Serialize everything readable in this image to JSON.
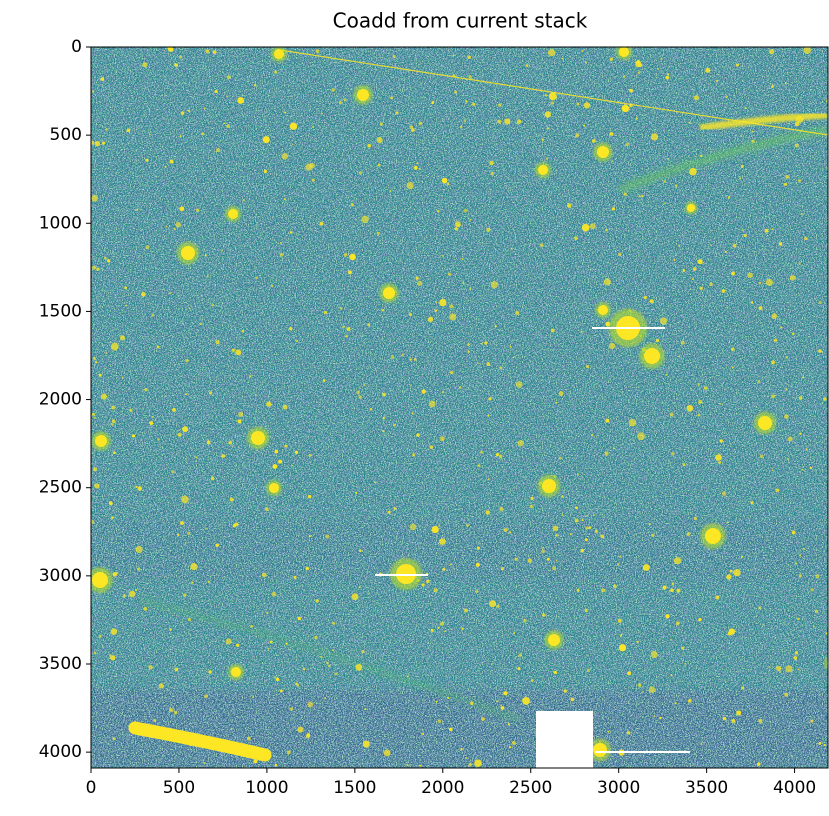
{
  "chart_data": {
    "type": "image",
    "title": "Coadd from current stack",
    "xlim": [
      0,
      4190
    ],
    "ylim": [
      4090,
      0
    ],
    "xticks": [
      0,
      500,
      1000,
      1500,
      2000,
      2500,
      3000,
      3500,
      4000
    ],
    "yticks": [
      0,
      500,
      1000,
      1500,
      2000,
      2500,
      3000,
      3500,
      4000
    ]
  }
}
